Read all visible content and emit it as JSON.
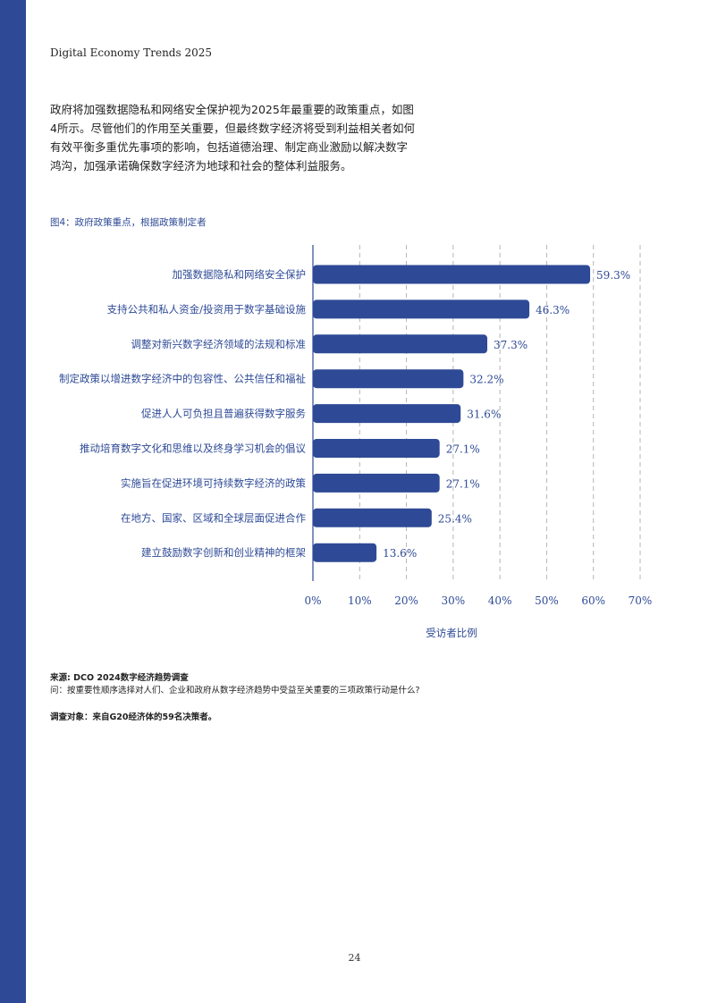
{
  "header": {
    "running_title": "Digital Economy Trends 2025"
  },
  "intro": {
    "line1": "政府将加强数据隐私和网络安全保护视为2025年最重要的政策重点，如图",
    "line2": "4所示。尽管他们的作用至关重要，但最终数字经济将受到利益相关者如何",
    "line3": "有效平衡多重优先事项的影响，包括道德治理、制定商业激励以解决数字",
    "line4": "鸿沟，加强承诺确保数字经济为地球和社会的整体利益服务。"
  },
  "figure": {
    "caption": "图4：政府政策重点，根据政策制定者"
  },
  "chart_data": {
    "type": "bar",
    "orientation": "horizontal",
    "title": "",
    "xlabel": "受访者比例",
    "ylabel": "",
    "xlim": [
      0,
      70
    ],
    "x_ticks": [
      0,
      10,
      20,
      30,
      40,
      50,
      60,
      70
    ],
    "x_tick_labels": [
      "0%",
      "10%",
      "20%",
      "30%",
      "40%",
      "50%",
      "60%",
      "70%"
    ],
    "grid": "vertical dashed",
    "bar_color": "#2e4a96",
    "categories": [
      "加强数据隐私和网络安全保护",
      "支持公共和私人资金/投资用于数字基础设施",
      "调整对新兴数字经济领域的法规和标准",
      "制定政策以增进数字经济中的包容性、公共信任和福祉",
      "促进人人可负担且普遍获得数字服务",
      "推动培育数字文化和思维以及终身学习机会的倡议",
      "实施旨在促进环境可持续数字经济的政策",
      "在地方、国家、区域和全球层面促进合作",
      "建立鼓励数字创新和创业精神的框架"
    ],
    "values": [
      59.3,
      46.3,
      37.3,
      32.2,
      31.6,
      27.1,
      27.1,
      25.4,
      13.6
    ],
    "value_labels": [
      "59.3%",
      "46.3%",
      "37.3%",
      "32.2%",
      "31.6%",
      "27.1%",
      "27.1%",
      "25.4%",
      "13.6%"
    ]
  },
  "notes": {
    "source": "来源: DCO 2024数字经济趋势调查",
    "question": "问：按重要性顺序选择对人们、企业和政府从数字经济趋势中受益至关重要的三项政策行动是什么?",
    "audience": "调查对象：来自G20经济体的59名决策者。"
  },
  "footer": {
    "page_number": "24"
  }
}
